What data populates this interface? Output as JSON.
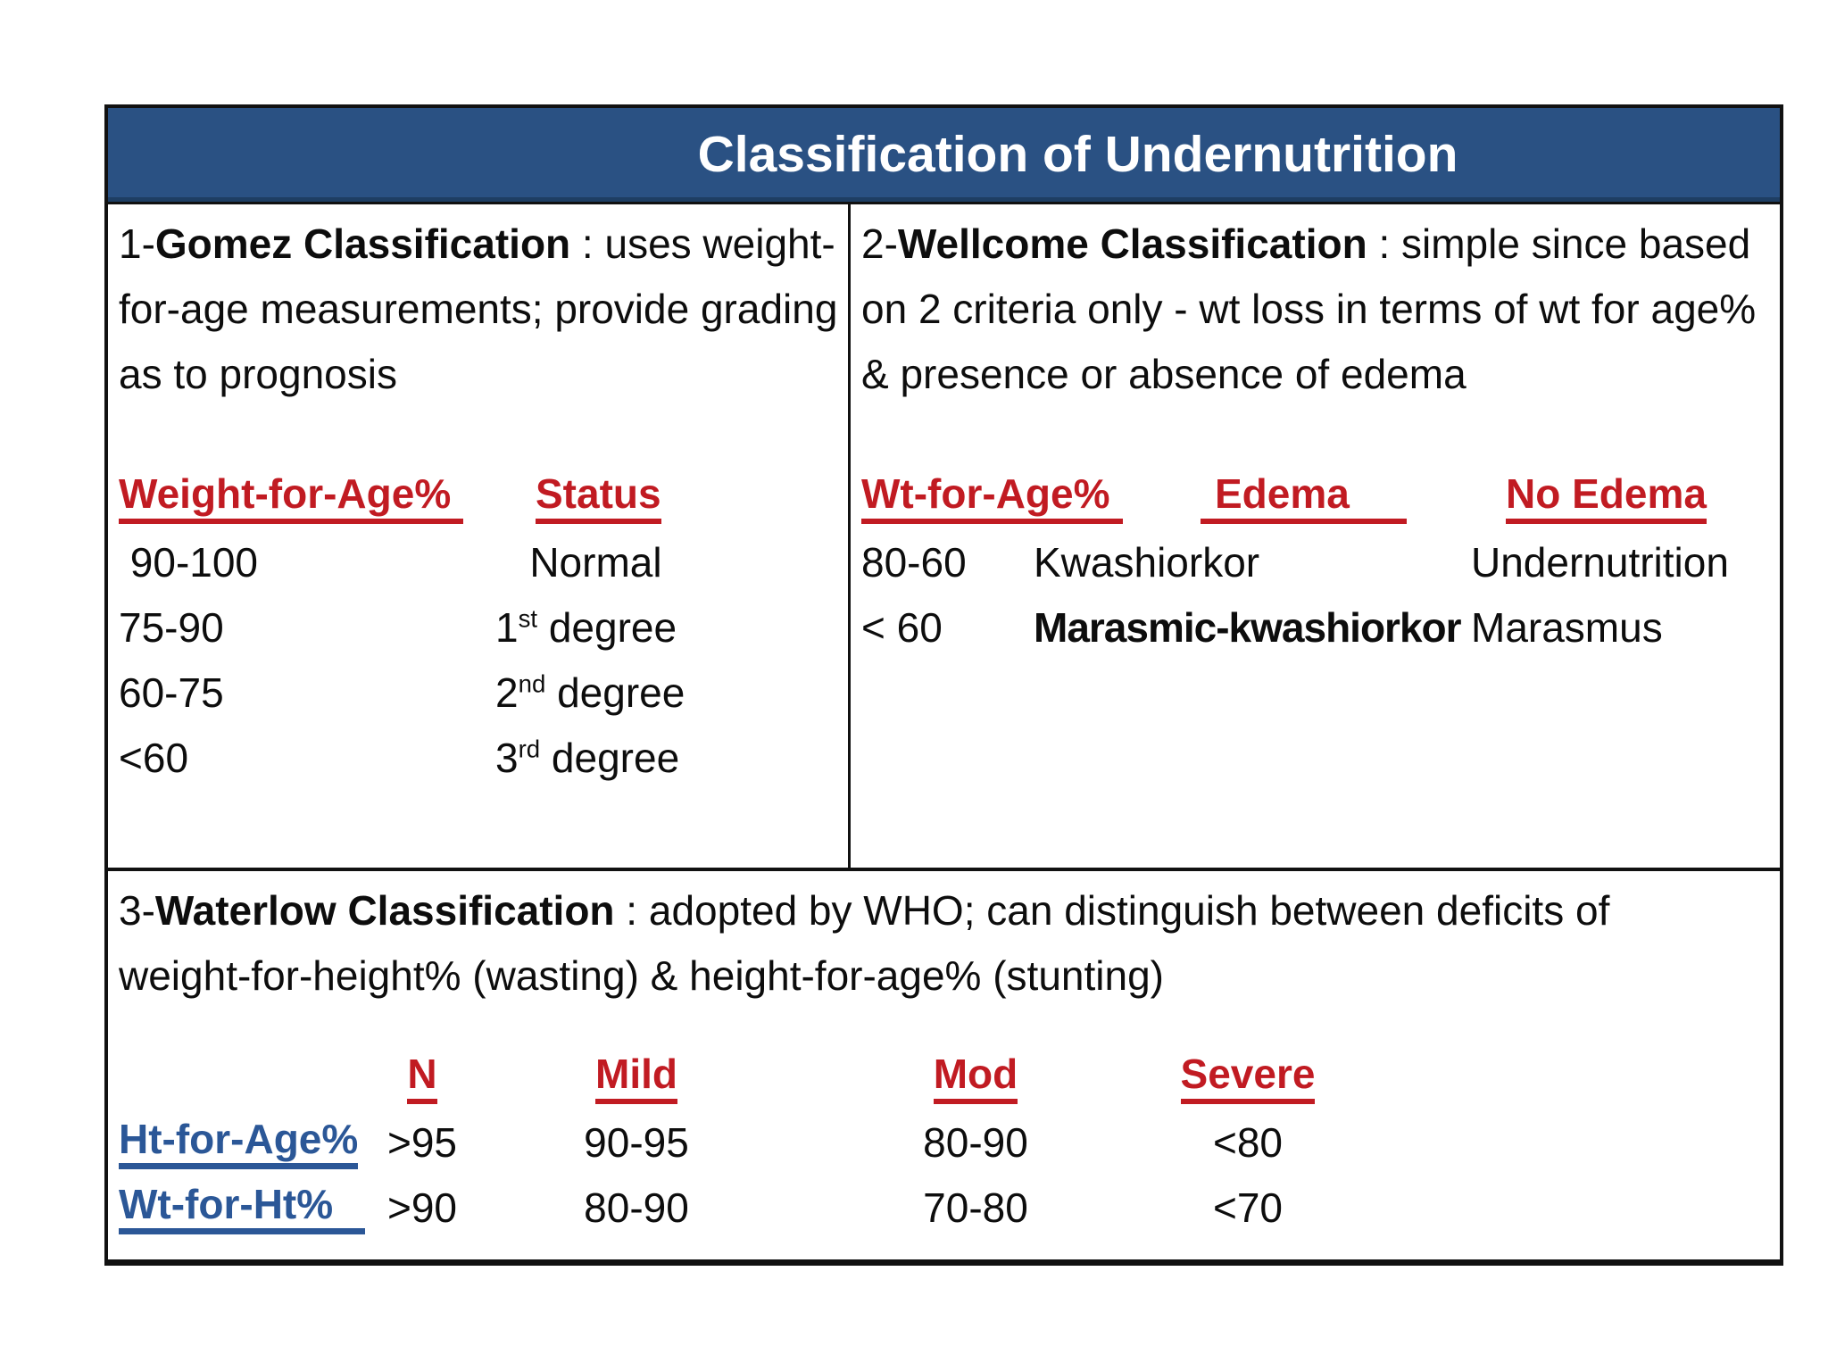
{
  "title": "Classification of Undernutrition",
  "colors": {
    "banner": "#2a5183",
    "banner_edge": "#1e3e63",
    "red": "#c11b22",
    "blue": "#2b5797",
    "ink": "#0d0d0d",
    "line": "#111111",
    "page_bg": "#ffffff"
  },
  "gomez": {
    "heading": {
      "prefix": "1-",
      "bold": "Gomez Classification",
      "rest": " : uses weight-for-age measurements; provide grading as to prognosis"
    },
    "table": {
      "headers": [
        "Weight-for-Age%",
        "Status"
      ],
      "rows": [
        {
          "range": " 90-100",
          "status": "   Normal",
          "sup": "",
          "rest": ""
        },
        {
          "range": "75-90",
          "status": "1",
          "sup": "st",
          "rest": " degree"
        },
        {
          "range": "60-75",
          "status": "2",
          "sup": "nd",
          "rest": " degree"
        },
        {
          "range": "<60",
          "status": "3",
          "sup": "rd",
          "rest": " degree"
        }
      ]
    }
  },
  "wellcome": {
    "heading": {
      "prefix": "2-",
      "bold": "Wellcome Classification",
      "rest": " : simple since based on 2 criteria only - wt loss in terms of wt for age% & presence or absence of edema"
    },
    "table": {
      "headers": [
        "Wt-for-Age%",
        "Edema",
        "No Edema"
      ],
      "rows": [
        {
          "range": "80-60",
          "edema": "Kwashiorkor",
          "no_edema": "Undernutrition"
        },
        {
          "range": "< 60",
          "edema": "Marasmic-kwashiorkor",
          "no_edema": "Marasmus"
        }
      ]
    }
  },
  "waterlow": {
    "heading": {
      "prefix": "3-",
      "bold": "Waterlow Classification",
      "rest": " : adopted by WHO; can distinguish between deficits of weight-for-height% (wasting) & height-for-age% (stunting)"
    },
    "table": {
      "col_headers": [
        "N",
        "Mild",
        "Mod",
        "Severe"
      ],
      "rows": [
        {
          "label": "Ht-for-Age%",
          "values": [
            ">95",
            "90-95",
            "80-90",
            "<80"
          ]
        },
        {
          "label": "Wt-for-Ht%",
          "values": [
            ">90",
            "80-90",
            "70-80",
            "<70"
          ]
        }
      ]
    }
  }
}
